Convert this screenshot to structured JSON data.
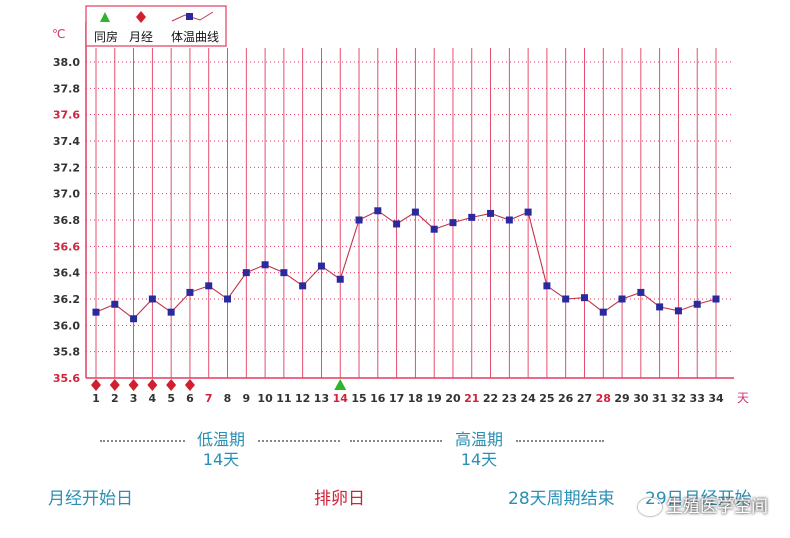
{
  "chart_data": {
    "type": "line",
    "unit_label": "℃",
    "x_unit": "天",
    "legend": [
      {
        "name": "同房",
        "marker": "green-triangle",
        "color": "#2db52d"
      },
      {
        "name": "月经",
        "marker": "red-diamond",
        "color": "#d21f2f"
      },
      {
        "name": "体温曲线",
        "marker": "blue-square-line",
        "color": "#2a2a9e"
      }
    ],
    "ylim": [
      35.6,
      38.0
    ],
    "yticks": [
      "38.0",
      "37.8",
      "37.6",
      "37.4",
      "37.2",
      "37.0",
      "36.8",
      "36.6",
      "36.4",
      "36.2",
      "36.0",
      "35.8",
      "35.6"
    ],
    "highlight_yticks": [
      "37.6",
      "36.6",
      "35.6"
    ],
    "x": [
      1,
      2,
      3,
      4,
      5,
      6,
      7,
      8,
      9,
      10,
      11,
      12,
      13,
      14,
      15,
      16,
      17,
      18,
      19,
      20,
      21,
      22,
      23,
      24,
      25,
      26,
      27,
      28,
      29,
      30,
      31,
      32,
      33,
      34
    ],
    "highlight_x": [
      7,
      14,
      21,
      28
    ],
    "series": [
      {
        "name": "体温曲线",
        "values": [
          36.1,
          36.16,
          36.05,
          36.2,
          36.1,
          36.25,
          36.3,
          36.2,
          36.4,
          36.46,
          36.4,
          36.3,
          36.45,
          36.35,
          36.8,
          36.87,
          36.77,
          36.86,
          36.73,
          36.78,
          36.82,
          36.85,
          36.8,
          36.86,
          36.3,
          36.2,
          36.21,
          36.1,
          36.2,
          36.25,
          36.14,
          36.11,
          36.16,
          36.2
        ]
      }
    ],
    "menstruation_days": [
      1,
      2,
      3,
      4,
      5,
      6
    ],
    "intercourse_days": [
      14
    ]
  },
  "annotations": {
    "low_phase": {
      "line1": "低温期",
      "line2": "14天"
    },
    "high_phase": {
      "line1": "高温期",
      "line2": "14天"
    },
    "menses_start": "月经开始日",
    "ovulation_day": "排卵日",
    "cycle_end": "28天周期结束",
    "next_menses": "29日月经开始"
  },
  "watermark": "生殖医学空间",
  "colors": {
    "grid": "#e33b5f",
    "axis_text": "#333333",
    "highlight_text": "#d0243c",
    "annotation": "#2a8fb5"
  }
}
